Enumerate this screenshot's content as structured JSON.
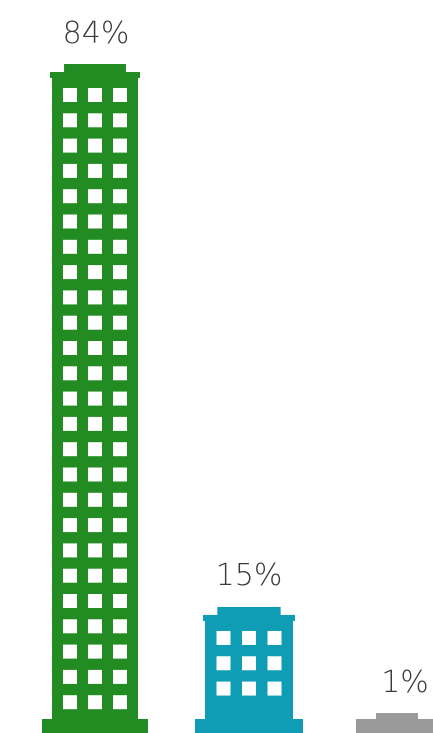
{
  "chart_data": {
    "type": "bar",
    "style": "pictograph-buildings",
    "categories": [
      "",
      "",
      ""
    ],
    "values": [
      84,
      15,
      1
    ],
    "value_labels": [
      "84%",
      "15%",
      "1%"
    ],
    "colors": [
      "#228b22",
      "#0e9db5",
      "#9a9a9a"
    ],
    "ylim": [
      0,
      84
    ],
    "grid": false,
    "legend": "none"
  }
}
